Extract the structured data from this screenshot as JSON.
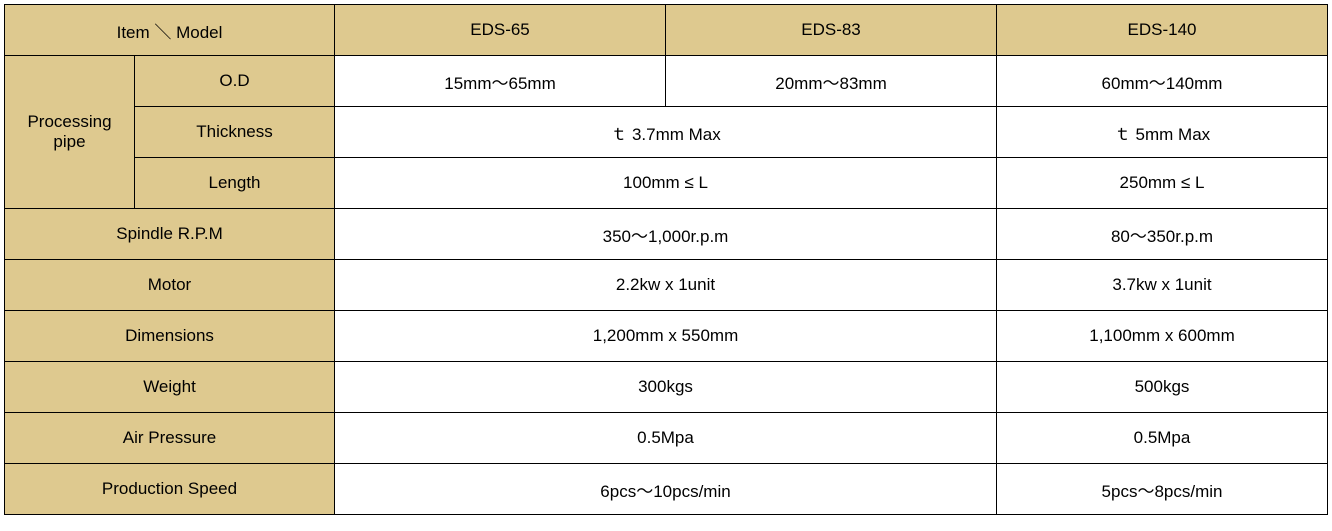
{
  "table": {
    "header_bg": "#dec98f",
    "data_bg": "#ffffff",
    "border_color": "#000000",
    "header": {
      "item_model": "Item ＼ Model",
      "models": [
        "EDS-65",
        "EDS-83",
        "EDS-140"
      ]
    },
    "rows": {
      "processing_pipe": {
        "label": "Processing pipe",
        "sub": {
          "od": {
            "label": "O.D",
            "vals": [
              "15mm～65mm",
              "20mm～83mm",
              "60mm～140mm"
            ]
          },
          "thickness": {
            "label": "Thickness",
            "span2": "ｔ 3.7mm Max",
            "v3": "ｔ 5mm Max"
          },
          "length": {
            "label": "Length",
            "span2": "100mm ≤ L",
            "v3": "250mm ≤ L"
          }
        }
      },
      "spindle": {
        "label": "Spindle R.P.M",
        "span2": "350～1,000r.p.m",
        "v3": "80～350r.p.m"
      },
      "motor": {
        "label": "Motor",
        "span2": "2.2kw x 1unit",
        "v3": "3.7kw x 1unit"
      },
      "dimensions": {
        "label": "Dimensions",
        "span2": "1,200mm x 550mm",
        "v3": "1,100mm x 600mm"
      },
      "weight": {
        "label": "Weight",
        "span2": "300kgs",
        "v3": "500kgs"
      },
      "air_pressure": {
        "label": "Air Pressure",
        "span2": "0.5Mpa",
        "v3": "0.5Mpa"
      },
      "production_speed": {
        "label": "Production Speed",
        "span2": "6pcs～10pcs/min",
        "v3": "5pcs～8pcs/min"
      }
    }
  }
}
